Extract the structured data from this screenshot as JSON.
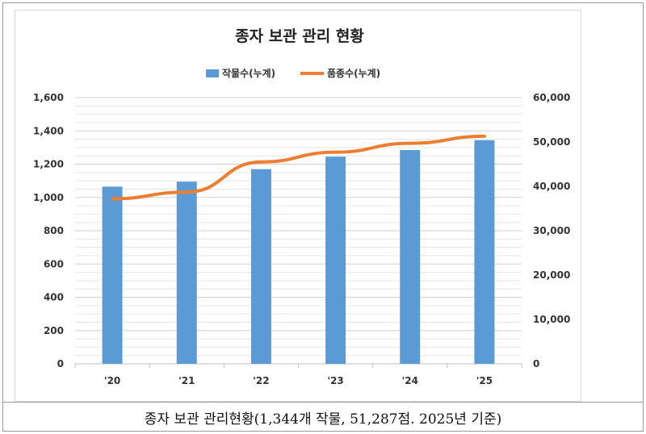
{
  "chart_data": {
    "type": "bar-line combo",
    "title": "종자 보관 관리 현황",
    "categories": [
      "'20",
      "'21",
      "'22",
      "'23",
      "'24",
      "'25"
    ],
    "series": [
      {
        "name": "작물수(누계)",
        "type": "bar",
        "axis": "left",
        "color": "#5b9bd5",
        "values": [
          1065,
          1095,
          1170,
          1245,
          1285,
          1344
        ]
      },
      {
        "name": "품종수(누계)",
        "type": "line",
        "axis": "right",
        "color": "#ed7d31",
        "values": [
          37200,
          38700,
          45500,
          47700,
          49700,
          51287
        ]
      }
    ],
    "left_axis": {
      "range": [
        0,
        1600
      ],
      "ticks": [
        "0",
        "200",
        "400",
        "600",
        "800",
        "1,000",
        "1,200",
        "1,400",
        "1,600"
      ]
    },
    "right_axis": {
      "range": [
        0,
        60000
      ],
      "ticks": [
        "0",
        "10,000",
        "20,000",
        "30,000",
        "40,000",
        "50,000",
        "60,000"
      ]
    },
    "legend_position": "top-center",
    "grid": true
  },
  "caption": "종자 보관 관리현황(1,344개 작물, 51,287점. 2025년 기준)"
}
